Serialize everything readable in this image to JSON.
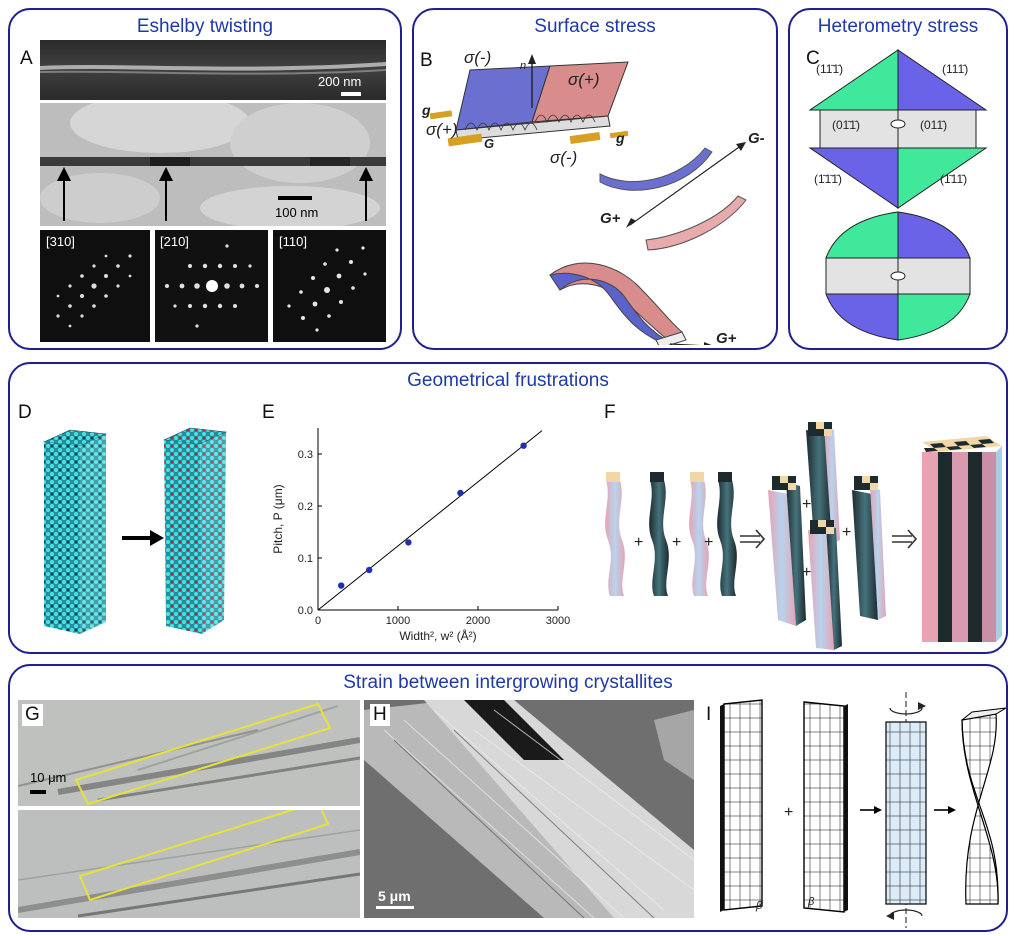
{
  "sections": {
    "eshelby": "Eshelby twisting",
    "surface": "Surface stress",
    "heterometry": "Heterometry stress",
    "geometrical": "Geometrical frustrations",
    "strain": "Strain between intergrowing crystallites"
  },
  "labels": {
    "A": "A",
    "B": "B",
    "C": "C",
    "D": "D",
    "E": "E",
    "F": "F",
    "G": "G",
    "H": "H",
    "I": "I"
  },
  "panel_a": {
    "scale_top": "200 nm",
    "scale_mid": "100 nm",
    "diffraction": [
      "[310]",
      "[210]",
      "[110]"
    ]
  },
  "panel_b": {
    "sigma_minus": "σ(-)",
    "sigma_plus": "σ(+)",
    "g_small": "g",
    "G_big": "G",
    "G_minus": "G-",
    "G_plus": "G+",
    "n": "n"
  },
  "panel_c": {
    "planes": [
      "(11̄1̄)",
      "(111̄)",
      "(01̄1̄)",
      "(011̄)",
      "(1̄1̄1̄)",
      "(1̄11̄)"
    ]
  },
  "panel_g": {
    "scale": "10 μm"
  },
  "panel_h": {
    "scale": "5 μm"
  },
  "panel_i": {
    "plus": "+",
    "beta": "β"
  },
  "panel_f": {
    "plus": "+"
  },
  "chart_data": {
    "type": "scatter",
    "xlabel": "Width², w² (Å²)",
    "ylabel": "Pitch, P (μm)",
    "xlim": [
      0,
      3000
    ],
    "ylim": [
      0,
      0.35
    ],
    "xticks": [
      "0",
      "1000",
      "2000",
      "3000"
    ],
    "yticks": [
      "0.0",
      "0.1",
      "0.2",
      "0.3"
    ],
    "points": [
      [
        290,
        0.047
      ],
      [
        640,
        0.077
      ],
      [
        1130,
        0.13
      ],
      [
        1780,
        0.225
      ],
      [
        2570,
        0.316
      ]
    ],
    "fit_line": [
      [
        0,
        0.0
      ],
      [
        2800,
        0.345
      ]
    ],
    "color": "#1f2fb0"
  },
  "colors": {
    "frame": "#1f1f8f",
    "title": "#1f3aa8",
    "green": "#3fe89a",
    "blue": "#6a63e8",
    "grey": "#e3e3e3",
    "pink": "#d99ab0",
    "dark": "#1d2a2e",
    "teal": "#35c3c8"
  }
}
